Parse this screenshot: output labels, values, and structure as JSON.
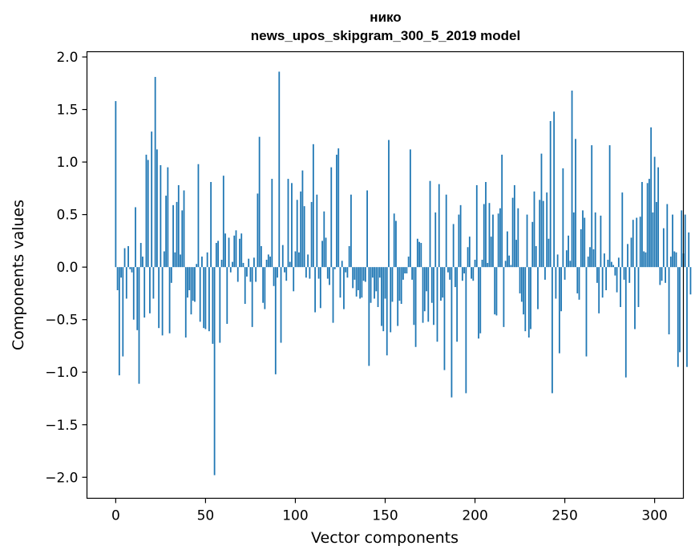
{
  "chart_data": {
    "type": "bar",
    "title": [
      "нико",
      "news_upos_skipgram_300_5_2019 model"
    ],
    "xlabel": "Vector components",
    "ylabel": "Components values",
    "xlim": [
      -16,
      316
    ],
    "ylim": [
      -2.2,
      2.05
    ],
    "xticks": [
      0,
      50,
      100,
      150,
      200,
      250,
      300
    ],
    "yticks": [
      -2.0,
      -1.5,
      -1.0,
      -0.5,
      0.0,
      0.5,
      1.0,
      1.5,
      2.0
    ],
    "xtick_labels": [
      "0",
      "50",
      "100",
      "150",
      "200",
      "250",
      "300"
    ],
    "ytick_labels": [
      "−2.0",
      "−1.5",
      "−1.0",
      "−0.5",
      "0.0",
      "0.5",
      "1.0",
      "1.5",
      "2.0"
    ],
    "grid": false,
    "color": "#1f77b4",
    "values": [
      1.58,
      -0.22,
      -1.03,
      -0.1,
      -0.85,
      0.18,
      -0.3,
      0.2,
      -0.02,
      -0.05,
      -0.5,
      0.57,
      -0.6,
      -1.11,
      0.23,
      0.1,
      -0.48,
      1.07,
      1.02,
      -0.44,
      1.29,
      -0.3,
      1.81,
      1.12,
      -0.58,
      0.97,
      -0.65,
      0.15,
      0.68,
      0.95,
      -0.63,
      -0.15,
      0.59,
      0.14,
      0.62,
      0.78,
      0.12,
      0.54,
      0.73,
      -0.67,
      -0.29,
      -0.22,
      -0.45,
      -0.32,
      -0.33,
      0.03,
      0.98,
      -0.52,
      0.1,
      -0.58,
      -0.59,
      0.14,
      -0.61,
      0.81,
      -0.73,
      -1.98,
      0.23,
      0.25,
      -0.72,
      0.07,
      0.87,
      0.32,
      -0.54,
      0.28,
      -0.05,
      0.05,
      0.3,
      0.35,
      -0.14,
      0.27,
      0.32,
      0.04,
      -0.35,
      -0.09,
      0.08,
      -0.14,
      -0.57,
      0.09,
      -0.14,
      0.7,
      1.24,
      0.2,
      -0.34,
      -0.4,
      0.07,
      0.12,
      0.1,
      0.84,
      -0.18,
      -1.02,
      -0.1,
      1.86,
      -0.72,
      0.21,
      -0.05,
      -0.13,
      0.84,
      0.05,
      0.8,
      -0.23,
      0.15,
      0.64,
      0.14,
      0.72,
      0.92,
      0.58,
      -0.1,
      0.12,
      -0.11,
      0.62,
      1.17,
      -0.43,
      0.69,
      -0.11,
      -0.39,
      0.25,
      0.53,
      0.28,
      -0.11,
      -0.17,
      0.95,
      -0.53,
      -0.02,
      1.07,
      1.13,
      -0.29,
      0.06,
      -0.4,
      -0.05,
      -0.1,
      0.2,
      0.69,
      -0.2,
      -0.12,
      -0.28,
      -0.22,
      -0.3,
      -0.29,
      -0.13,
      -0.14,
      0.73,
      -0.94,
      -0.34,
      -0.1,
      -0.3,
      -0.23,
      -0.38,
      -0.1,
      -0.56,
      -0.61,
      -0.3,
      -0.84,
      1.21,
      -0.62,
      -0.33,
      0.51,
      0.44,
      -0.56,
      -0.32,
      -0.35,
      -0.12,
      -0.06,
      -0.06,
      0.1,
      1.12,
      -0.12,
      -0.55,
      -0.76,
      0.27,
      0.24,
      0.23,
      -0.53,
      -0.42,
      -0.23,
      -0.52,
      0.82,
      -0.34,
      -0.55,
      0.52,
      -0.71,
      0.79,
      -0.32,
      -0.29,
      -0.98,
      0.69,
      -0.05,
      -0.12,
      -1.24,
      0.41,
      -0.19,
      -0.71,
      0.5,
      0.59,
      -0.13,
      -0.06,
      -1.2,
      0.19,
      0.29,
      -0.11,
      -0.13,
      0.07,
      0.78,
      -0.68,
      -0.63,
      0.07,
      0.6,
      0.81,
      0.04,
      0.61,
      0.29,
      0.5,
      -0.45,
      -0.46,
      0.51,
      0.56,
      1.07,
      -0.57,
      0.06,
      0.34,
      0.11,
      0.02,
      0.66,
      0.78,
      0.26,
      0.56,
      -0.25,
      -0.33,
      -0.45,
      -0.61,
      0.5,
      -0.67,
      -0.59,
      0.43,
      0.72,
      0.2,
      -0.4,
      0.64,
      1.08,
      0.63,
      -0.12,
      0.71,
      0.27,
      1.39,
      -1.2,
      1.48,
      -0.3,
      0.12,
      -0.82,
      -0.42,
      0.94,
      -0.12,
      0.16,
      0.3,
      0.06,
      1.68,
      0.52,
      1.22,
      -0.25,
      -0.31,
      0.36,
      0.54,
      0.47,
      -0.85,
      0.1,
      0.19,
      1.16,
      0.17,
      0.52,
      -0.15,
      -0.44,
      0.49,
      -0.29,
      0.13,
      -0.22,
      0.07,
      1.16,
      0.05,
      0.02,
      -0.08,
      -0.24,
      0.09,
      -0.38,
      0.71,
      -0.12,
      -1.05,
      0.22,
      -0.15,
      0.28,
      0.45,
      -0.59,
      0.47,
      -0.38,
      0.48,
      0.81,
      0.15,
      0.14,
      0.8,
      0.84,
      1.33,
      0.52,
      1.05,
      0.62,
      0.95,
      -0.17,
      -0.13,
      0.37,
      -0.15,
      0.6,
      -0.64,
      0.1,
      0.5,
      0.15,
      0.14,
      -0.95,
      -0.81,
      0.54,
      0.13,
      0.5,
      -0.95,
      0.33,
      -0.26
    ]
  }
}
